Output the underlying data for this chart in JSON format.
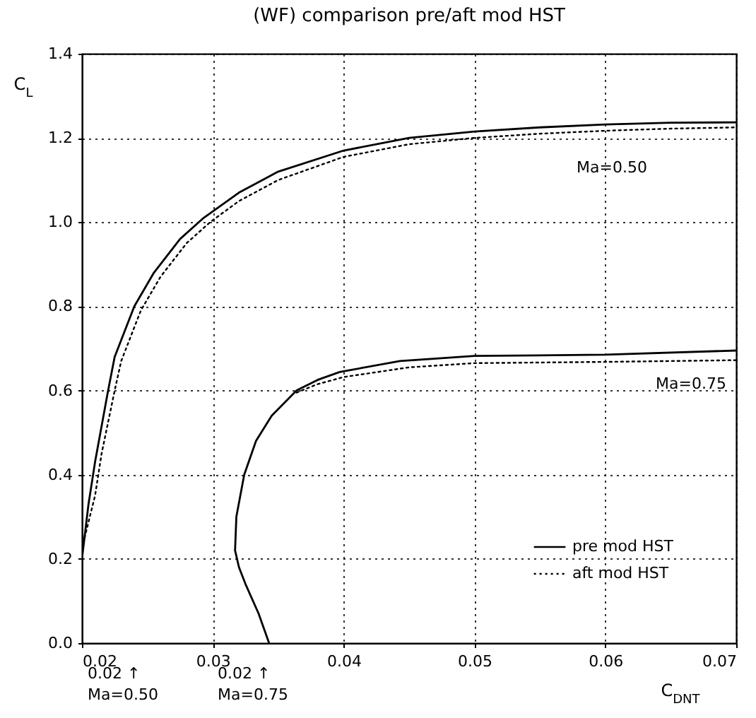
{
  "chart_data": {
    "type": "line",
    "title": "(WF) comparison pre/aft mod HST",
    "xlabel": "C$_{DNT}$",
    "ylabel": "C$_{L}$",
    "xlim": [
      0.02,
      0.07
    ],
    "ylim": [
      0,
      1.4
    ],
    "xticks": [
      0.02,
      0.03,
      0.04,
      0.05,
      0.06,
      0.07
    ],
    "yticks": [
      {
        "value": 0,
        "label": "0.0"
      },
      0.2,
      0.4,
      0.6,
      0.8,
      {
        "value": 1,
        "label": "1.0"
      },
      1.2,
      1.4
    ],
    "grid": true,
    "legend": "bottom right",
    "marker": "none",
    "series": [
      {
        "name": "pre mod HST",
        "color": "#000000",
        "line_style": "solid",
        "x": [
          0.02,
          0.0205,
          0.021,
          0.022,
          0.0225,
          0.024,
          0.0255,
          0.0275,
          0.0293,
          0.032,
          0.035,
          0.04,
          0.045,
          0.05,
          0.055,
          0.06,
          0.065,
          0.07
        ],
        "values": [
          0.2,
          0.33,
          0.43,
          0.6,
          0.68,
          0.8,
          0.88,
          0.96,
          1.01,
          1.07,
          1.12,
          1.17,
          1.2,
          1.215,
          1.225,
          1.232,
          1.236,
          1.237
        ]
      },
      {
        "name": "aft mod HST",
        "color": "#000000",
        "line_style": "dotted",
        "x": [
          0.0202,
          0.021,
          0.0215,
          0.0225,
          0.023,
          0.0245,
          0.026,
          0.028,
          0.0298,
          0.032,
          0.035,
          0.04,
          0.045,
          0.05,
          0.055,
          0.06,
          0.065,
          0.07
        ],
        "values": [
          0.25,
          0.35,
          0.45,
          0.6,
          0.67,
          0.79,
          0.87,
          0.95,
          1.0,
          1.05,
          1.1,
          1.155,
          1.185,
          1.2,
          1.21,
          1.217,
          1.222,
          1.225
        ]
      },
      {
        "color": "#000000",
        "line_style": "solid",
        "x": [
          0.0343,
          0.0335,
          0.0325,
          0.032,
          0.0317,
          0.0318,
          0.0324,
          0.0333,
          0.0345,
          0.0364,
          0.038,
          0.0397,
          0.0443,
          0.05,
          0.06,
          0.07
        ],
        "values": [
          0.0,
          0.07,
          0.14,
          0.18,
          0.22,
          0.3,
          0.4,
          0.48,
          0.54,
          0.6,
          0.625,
          0.644,
          0.67,
          0.682,
          0.685,
          0.695
        ]
      },
      {
        "color": "#000000",
        "line_style": "dotted",
        "x": [
          0.0364,
          0.038,
          0.04,
          0.045,
          0.05,
          0.06,
          0.07
        ],
        "values": [
          0.595,
          0.615,
          0.632,
          0.655,
          0.665,
          0.668,
          0.672
        ]
      }
    ],
    "annotations": [
      "Ma=0.50",
      "Ma=0.75",
      "0.02 ↑\nMa=0.50",
      "0.02 ↑\nMa=0.75"
    ]
  }
}
